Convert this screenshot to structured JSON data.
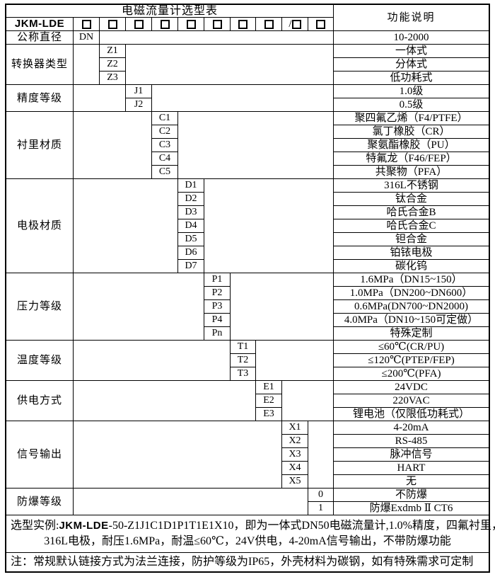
{
  "title": "电磁流量计选型表",
  "function_header": "功能说明",
  "model_prefix": "JKM-LDE",
  "checkbox_prefixes": [
    "",
    "",
    "",
    "",
    "",
    "",
    "",
    "",
    "/",
    ""
  ],
  "sections": [
    {
      "label": "公称直径",
      "rows": [
        {
          "code": "DN",
          "desc": "10-2000"
        }
      ]
    },
    {
      "label": "转换器类型",
      "rows": [
        {
          "code": "Z1",
          "desc": "一体式"
        },
        {
          "code": "Z2",
          "desc": "分体式"
        },
        {
          "code": "Z3",
          "desc": "低功耗式"
        }
      ]
    },
    {
      "label": "精度等级",
      "rows": [
        {
          "code": "J1",
          "desc": "1.0级"
        },
        {
          "code": "J2",
          "desc": "0.5级"
        }
      ]
    },
    {
      "label": "衬里材质",
      "rows": [
        {
          "code": "C1",
          "desc": "聚四氟乙烯（F4/PTFE）"
        },
        {
          "code": "C2",
          "desc": "氯丁橡胶（CR）"
        },
        {
          "code": "C3",
          "desc": "聚氨酯橡胶（PU）"
        },
        {
          "code": "C4",
          "desc": "特氟龙（F46/FEP）"
        },
        {
          "code": "C5",
          "desc": "共聚物（PFA）"
        }
      ]
    },
    {
      "label": "电极材质",
      "rows": [
        {
          "code": "D1",
          "desc": "316L不锈钢"
        },
        {
          "code": "D2",
          "desc": "钛合金"
        },
        {
          "code": "D3",
          "desc": "哈氏合金B"
        },
        {
          "code": "D4",
          "desc": "哈氏合金C"
        },
        {
          "code": "D5",
          "desc": "钽合金"
        },
        {
          "code": "D6",
          "desc": "铂铱电极"
        },
        {
          "code": "D7",
          "desc": "碳化钨"
        }
      ]
    },
    {
      "label": "压力等级",
      "rows": [
        {
          "code": "P1",
          "desc": "1.6MPa（DN15~150）"
        },
        {
          "code": "P2",
          "desc": "1.0MPa（DN200~DN600）"
        },
        {
          "code": "P3",
          "desc": "0.6MPa(DN700~DN2000)"
        },
        {
          "code": "P4",
          "desc": "4.0MPa（DN10~150可定做）"
        },
        {
          "code": "Pn",
          "desc": "特殊定制"
        }
      ]
    },
    {
      "label": "温度等级",
      "rows": [
        {
          "code": "T1",
          "desc": "≤60℃(CR/PU)"
        },
        {
          "code": "T2",
          "desc": "≤120℃(PTEP/FEP)"
        },
        {
          "code": "T3",
          "desc": "≤200℃(PFA)"
        }
      ]
    },
    {
      "label": "供电方式",
      "rows": [
        {
          "code": "E1",
          "desc": "24VDC"
        },
        {
          "code": "E2",
          "desc": "220VAC"
        },
        {
          "code": "E3",
          "desc": "锂电池（仅限低功耗式）"
        }
      ]
    },
    {
      "label": "信号输出",
      "rows": [
        {
          "code": "X1",
          "desc": "4-20mA"
        },
        {
          "code": "X2",
          "desc": "RS-485"
        },
        {
          "code": "X3",
          "desc": "脉冲信号"
        },
        {
          "code": "X4",
          "desc": "HART"
        },
        {
          "code": "X5",
          "desc": "无"
        }
      ]
    },
    {
      "label": "防爆等级",
      "rows": [
        {
          "code": "0",
          "desc": "不防爆"
        },
        {
          "code": "1",
          "desc": "防爆Exdmb Ⅱ CT6"
        }
      ]
    }
  ],
  "footer": {
    "example_prefix": "选型实例:",
    "example_model": "JKM-LDE",
    "example_rest": "-50-Z1J1C1D1P1T1E1X10，即为一体式DN50电磁流量计,1.0%精度，四氟衬里，",
    "example_line2": "316L电极，耐压1.6MPa，耐温≤60℃，24V供电，4-20mA信号输出，不带防爆功能",
    "note": "注：常规默认链接方式为法兰连接，防护等级为IP65，外壳材料为碳钢，如有特殊需求可定制"
  },
  "colors": {
    "border": "#000000",
    "text": "#000000",
    "background": "#ffffff"
  }
}
